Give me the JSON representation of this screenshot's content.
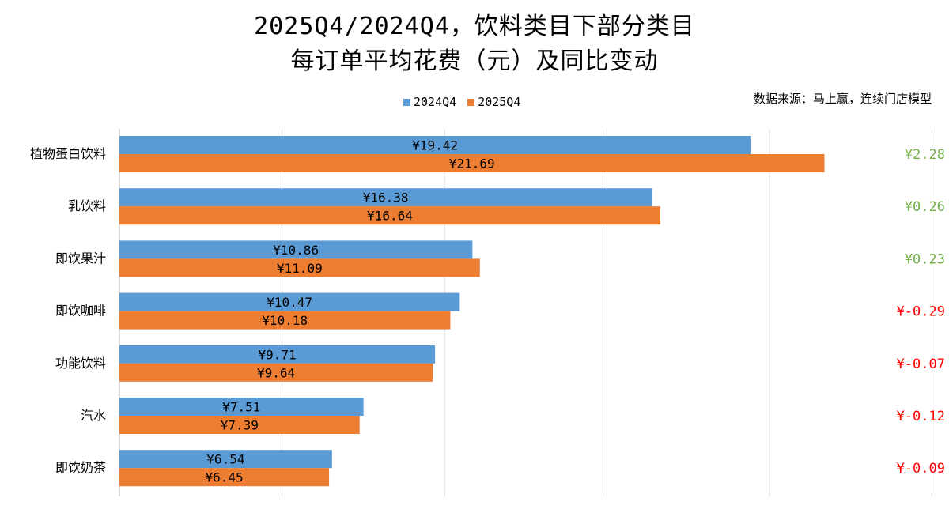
{
  "chart_data": {
    "type": "bar",
    "orientation": "horizontal",
    "title_line1": "2025Q4/2024Q4，饮料类目下部分类目",
    "title_line2": "每订单平均花费（元）及同比变动",
    "source": "数据来源：马上赢，连续门店模型",
    "legend_position": "top",
    "grid": true,
    "xlim": [
      0,
      25
    ],
    "categories": [
      "植物蛋白饮料",
      "乳饮料",
      "即饮果汁",
      "即饮咖啡",
      "功能饮料",
      "汽水",
      "即饮奶茶"
    ],
    "series": [
      {
        "name": "2024Q4",
        "color": "#5b9bd5",
        "values": [
          19.42,
          16.38,
          10.86,
          10.47,
          9.71,
          7.51,
          6.54
        ],
        "labels": [
          "¥19.42",
          "¥16.38",
          "¥10.86",
          "¥10.47",
          "¥9.71",
          "¥7.51",
          "¥6.54"
        ]
      },
      {
        "name": "2025Q4",
        "color": "#ed7d31",
        "values": [
          21.69,
          16.64,
          11.09,
          10.18,
          9.64,
          7.39,
          6.45
        ],
        "labels": [
          "¥21.69",
          "¥16.64",
          "¥11.09",
          "¥10.18",
          "¥9.64",
          "¥7.39",
          "¥6.45"
        ]
      }
    ],
    "changes": {
      "values": [
        2.28,
        0.26,
        0.23,
        -0.29,
        -0.07,
        -0.12,
        -0.09
      ],
      "labels": [
        "¥2.28",
        "¥0.26",
        "¥0.23",
        "¥-0.29",
        "¥-0.07",
        "¥-0.12",
        "¥-0.09"
      ],
      "positive_color": "#70ad47",
      "negative_color": "#ff0000"
    },
    "gridline_color": "#d9d9d9"
  }
}
